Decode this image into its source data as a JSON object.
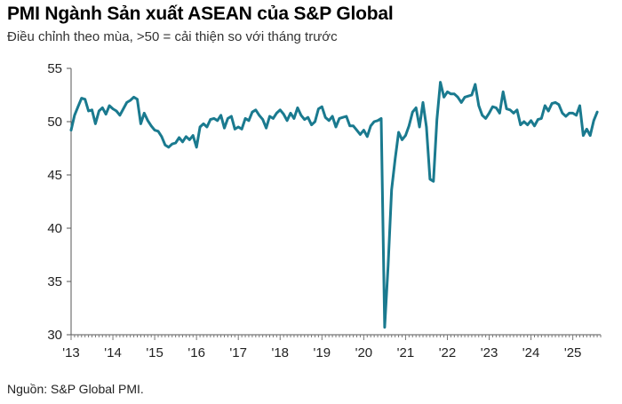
{
  "header": {
    "title": "PMI Ngành Sản xuất ASEAN của S&P Global",
    "subtitle": "Điều chỉnh theo mùa, >50 = cải thiện so với tháng trước"
  },
  "footer": {
    "source": "Nguồn: S&P Global PMI."
  },
  "chart_data": {
    "type": "line",
    "title": "PMI Ngành Sản xuất ASEAN của S&P Global",
    "subtitle": "Điều chỉnh theo mùa, >50 = cải thiện so với tháng trước",
    "xlabel": "",
    "ylabel": "",
    "ylim": [
      30,
      55
    ],
    "yticks": [
      30,
      35,
      40,
      45,
      50,
      55
    ],
    "xlim": [
      "2013-01",
      "2025-08"
    ],
    "xticks": [
      "'13",
      "'14",
      "'15",
      "'16",
      "'17",
      "'18",
      "'19",
      "'20",
      "'21",
      "'22",
      "'23",
      "'24",
      "'25"
    ],
    "grid": false,
    "legend": "none",
    "line_color": "#1a7a8f",
    "series": [
      {
        "x": [
          "2013-01",
          "2013-02",
          "2013-03",
          "2013-04",
          "2013-05",
          "2013-06",
          "2013-07",
          "2013-08",
          "2013-09",
          "2013-10",
          "2013-11",
          "2013-12",
          "2014-01",
          "2014-02",
          "2014-03",
          "2014-04",
          "2014-05",
          "2014-06",
          "2014-07",
          "2014-08",
          "2014-09",
          "2014-10",
          "2014-11",
          "2014-12",
          "2015-01",
          "2015-02",
          "2015-03",
          "2015-04",
          "2015-05",
          "2015-06",
          "2015-07",
          "2015-08",
          "2015-09",
          "2015-10",
          "2015-11",
          "2015-12",
          "2016-01",
          "2016-02",
          "2016-03",
          "2016-04",
          "2016-05",
          "2016-06",
          "2016-07",
          "2016-08",
          "2016-09",
          "2016-10",
          "2016-11",
          "2016-12",
          "2017-01",
          "2017-02",
          "2017-03",
          "2017-04",
          "2017-05",
          "2017-06",
          "2017-07",
          "2017-08",
          "2017-09",
          "2017-10",
          "2017-11",
          "2017-12",
          "2018-01",
          "2018-02",
          "2018-03",
          "2018-04",
          "2018-05",
          "2018-06",
          "2018-07",
          "2018-08",
          "2018-09",
          "2018-10",
          "2018-11",
          "2018-12",
          "2019-01",
          "2019-02",
          "2019-03",
          "2019-04",
          "2019-05",
          "2019-06",
          "2019-07",
          "2019-08",
          "2019-09",
          "2019-10",
          "2019-11",
          "2019-12",
          "2020-01",
          "2020-02",
          "2020-03",
          "2020-04",
          "2020-05",
          "2020-06",
          "2020-07",
          "2020-08",
          "2020-09",
          "2020-10",
          "2020-11",
          "2020-12",
          "2021-01",
          "2021-02",
          "2021-03",
          "2021-04",
          "2021-05",
          "2021-06",
          "2021-07",
          "2021-08",
          "2021-09",
          "2021-10",
          "2021-11",
          "2021-12",
          "2022-01",
          "2022-02",
          "2022-03",
          "2022-04",
          "2022-05",
          "2022-06",
          "2022-07",
          "2022-08",
          "2022-09",
          "2022-10",
          "2022-11",
          "2022-12",
          "2023-01",
          "2023-02",
          "2023-03",
          "2023-04",
          "2023-05",
          "2023-06",
          "2023-07",
          "2023-08",
          "2023-09",
          "2023-10",
          "2023-11",
          "2023-12",
          "2024-01",
          "2024-02",
          "2024-03",
          "2024-04",
          "2024-05",
          "2024-06",
          "2024-07",
          "2024-08",
          "2024-09",
          "2024-10",
          "2024-11",
          "2024-12",
          "2025-01",
          "2025-02",
          "2025-03",
          "2025-04",
          "2025-05",
          "2025-06",
          "2025-07",
          "2025-08"
        ],
        "values": [
          49.2,
          50.6,
          51.4,
          52.2,
          52.1,
          51.0,
          51.1,
          49.8,
          51.0,
          51.3,
          50.7,
          51.5,
          51.2,
          51.0,
          50.6,
          51.2,
          51.8,
          52.0,
          52.3,
          52.1,
          49.8,
          50.8,
          50.1,
          49.6,
          49.2,
          49.1,
          48.6,
          47.8,
          47.6,
          47.9,
          48.0,
          48.5,
          48.1,
          48.6,
          48.3,
          48.7,
          47.6,
          49.5,
          49.8,
          49.5,
          50.2,
          50.3,
          50.1,
          50.6,
          49.4,
          50.3,
          50.5,
          49.3,
          49.5,
          49.3,
          50.3,
          50.1,
          50.9,
          51.1,
          50.6,
          50.2,
          49.4,
          50.5,
          50.3,
          50.8,
          51.1,
          50.7,
          50.1,
          50.8,
          50.3,
          51.3,
          50.6,
          50.2,
          50.4,
          49.7,
          50.0,
          51.2,
          51.4,
          50.4,
          50.1,
          50.5,
          49.5,
          50.3,
          50.4,
          50.5,
          49.6,
          49.6,
          49.2,
          48.8,
          49.2,
          48.6,
          49.6,
          50.0,
          50.1,
          50.3,
          30.7,
          36.5,
          43.6,
          46.5,
          49.0,
          48.3,
          48.7,
          49.6,
          50.9,
          51.3,
          49.5,
          51.8,
          49.5,
          44.6,
          44.4,
          50.2,
          53.7,
          52.3,
          52.8,
          52.6,
          52.6,
          52.3,
          51.8,
          52.3,
          52.4,
          52.5,
          53.5,
          51.5,
          50.6,
          50.3,
          50.8,
          51.4,
          51.3,
          50.8,
          52.8,
          51.2,
          51.1,
          50.8,
          51.1,
          49.7,
          50.0,
          49.7,
          50.1,
          49.6,
          50.2,
          50.3,
          51.5,
          51.0,
          51.7,
          51.8,
          51.6,
          50.8,
          50.5,
          50.8,
          50.8,
          50.6,
          51.5,
          48.7,
          49.3,
          48.7,
          50.1,
          50.9
        ]
      }
    ]
  }
}
